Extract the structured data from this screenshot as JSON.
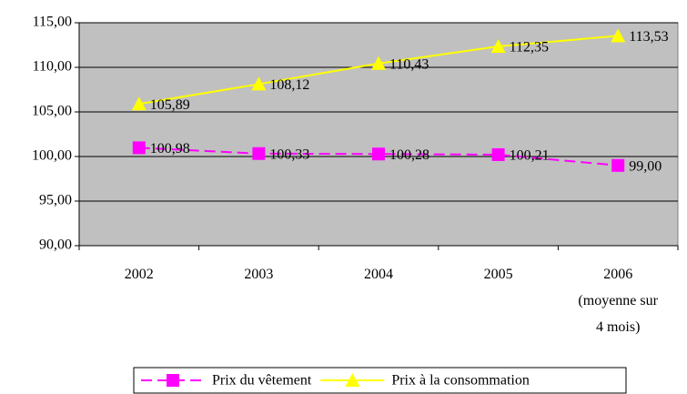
{
  "chart_data": {
    "type": "line",
    "categories": [
      "2002",
      "2003",
      "2004",
      "2005",
      "2006\n(moyenne sur\n4 mois)"
    ],
    "series": [
      {
        "name": "Prix du vêtement",
        "color": "#ff00ff",
        "dash": true,
        "marker": "square",
        "values": [
          100.98,
          100.33,
          100.28,
          100.21,
          99.0
        ],
        "value_labels": [
          "100,98",
          "100,33",
          "100,28",
          "100,21",
          "99,00"
        ]
      },
      {
        "name": "Prix à la consommation",
        "color": "#ffff00",
        "dash": false,
        "marker": "triangle",
        "values": [
          105.89,
          108.12,
          110.43,
          112.35,
          113.53
        ],
        "value_labels": [
          "105,89",
          "108,12",
          "110,43",
          "112,35",
          "113,53"
        ]
      }
    ],
    "ylim": [
      90,
      115
    ],
    "yticks": [
      {
        "value": 90,
        "label": "90,00"
      },
      {
        "value": 95,
        "label": "95,00"
      },
      {
        "value": 100,
        "label": "100,00"
      },
      {
        "value": 105,
        "label": "105,00"
      },
      {
        "value": 110,
        "label": "110,00"
      },
      {
        "value": 115,
        "label": "115,00"
      }
    ],
    "grid": true,
    "legend": "bottom"
  }
}
